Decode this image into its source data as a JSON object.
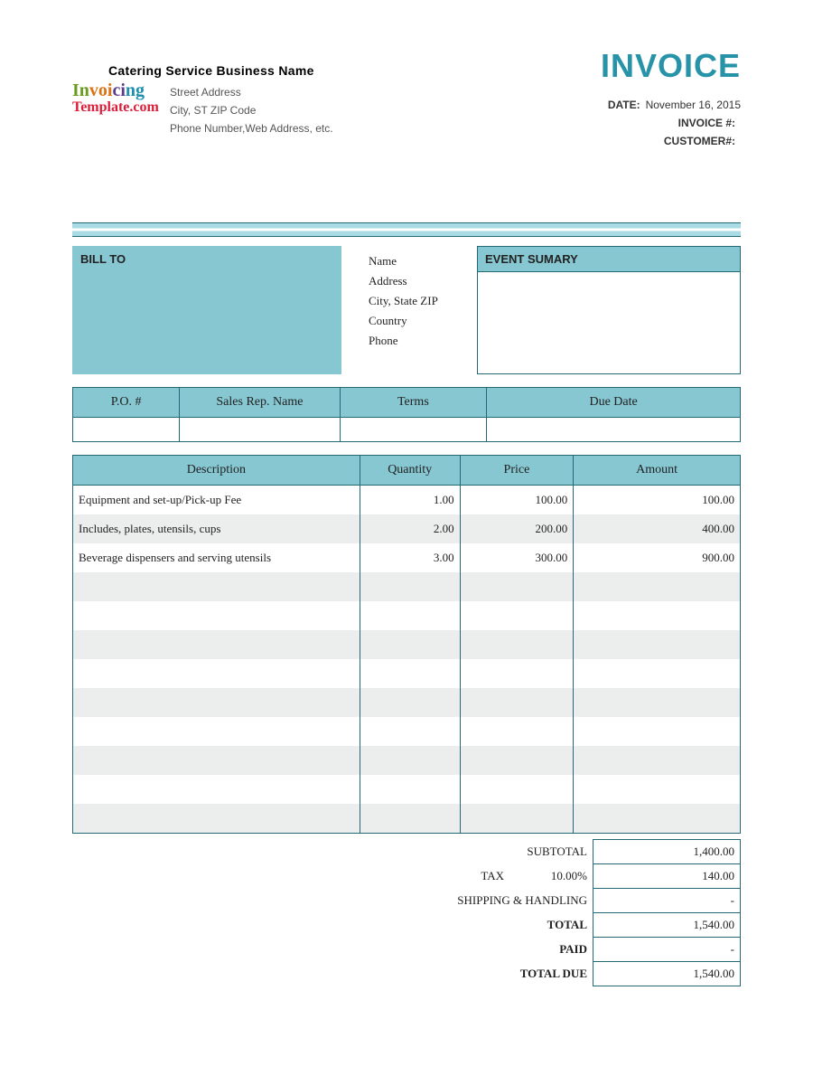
{
  "colors": {
    "accent": "#2793a8",
    "header_bg": "#86c7d2",
    "border": "#236a76",
    "alt_row": "#eceeee"
  },
  "header": {
    "company_name": "Catering  Service Business Name",
    "logo_line1": "Invoicing",
    "logo_line2": "Template.com",
    "address": [
      "Street Address",
      "City, ST ZIP Code",
      "Phone Number,Web Address, etc."
    ],
    "invoice_word": "INVOICE",
    "meta": {
      "date_label": "DATE:",
      "date_value": "November 16, 2015",
      "invoice_no_label": "INVOICE #:",
      "invoice_no_value": "",
      "customer_no_label": "CUSTOMER#:",
      "customer_no_value": ""
    }
  },
  "billto": {
    "heading": "BILL TO"
  },
  "customer_labels": [
    "Name",
    "Address",
    "City, State ZIP",
    "Country",
    "Phone"
  ],
  "event": {
    "heading": "EVENT SUMARY"
  },
  "po_table": {
    "headers": [
      "P.O. #",
      "Sales Rep. Name",
      "Terms",
      "Due Date"
    ]
  },
  "items_table": {
    "headers": [
      "Description",
      "Quantity",
      "Price",
      "Amount"
    ],
    "rows": [
      {
        "desc": "Equipment and set-up/Pick-up  Fee",
        "qty": "1.00",
        "price": "100.00",
        "amount": "100.00"
      },
      {
        "desc": "Includes, plates, utensils, cups",
        "qty": "2.00",
        "price": "200.00",
        "amount": "400.00"
      },
      {
        "desc": "Beverage dispensers and serving utensils",
        "qty": "3.00",
        "price": "300.00",
        "amount": "900.00"
      }
    ],
    "blank_rows": 9
  },
  "totals": {
    "subtotal_label": "SUBTOTAL",
    "subtotal_value": "1,400.00",
    "tax_label": "TAX",
    "tax_pct": "10.00%",
    "tax_value": "140.00",
    "shipping_label": "SHIPPING & HANDLING",
    "shipping_value": "-",
    "total_label": "TOTAL",
    "total_value": "1,540.00",
    "paid_label": "PAID",
    "paid_value": "-",
    "due_label": "TOTAL DUE",
    "due_value": "1,540.00"
  }
}
